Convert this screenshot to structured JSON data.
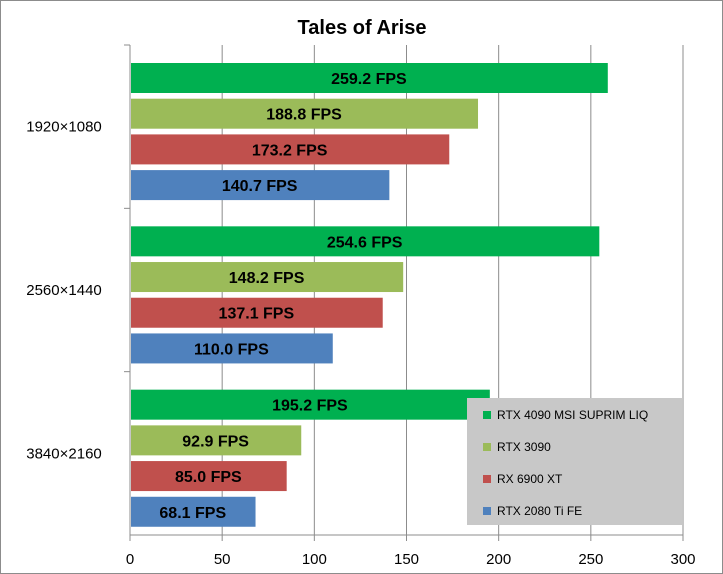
{
  "chart_data": {
    "type": "bar",
    "orientation": "horizontal",
    "title": "Tales of Arise",
    "categories": [
      "1920×1080",
      "2560×1440",
      "3840×2160"
    ],
    "series": [
      {
        "name": "RTX 4090 MSI SUPRIM LIQ",
        "color": "#00b050",
        "values": [
          259.2,
          254.6,
          195.2
        ],
        "labels": [
          "259.2 FPS",
          "254.6 FPS",
          "195.2 FPS"
        ]
      },
      {
        "name": "RTX 3090",
        "color": "#9bbb59",
        "values": [
          188.8,
          148.2,
          92.9
        ],
        "labels": [
          "188.8 FPS",
          "148.2 FPS",
          "92.9 FPS"
        ]
      },
      {
        "name": "RX 6900 XT",
        "color": "#c0504d",
        "values": [
          173.2,
          137.1,
          85.0
        ],
        "labels": [
          "173.2 FPS",
          "137.1 FPS",
          "85.0 FPS"
        ]
      },
      {
        "name": "RTX 2080 Ti FE",
        "color": "#4f81bd",
        "values": [
          140.7,
          110.0,
          68.1
        ],
        "labels": [
          "140.7 FPS",
          "110.0 FPS",
          "68.1 FPS"
        ]
      }
    ],
    "xlim": [
      0,
      300
    ],
    "xticks": [
      0,
      50,
      100,
      150,
      200,
      250,
      300
    ],
    "xlabel": "",
    "ylabel": "",
    "grid": true,
    "legend_position": "bottom-right"
  }
}
